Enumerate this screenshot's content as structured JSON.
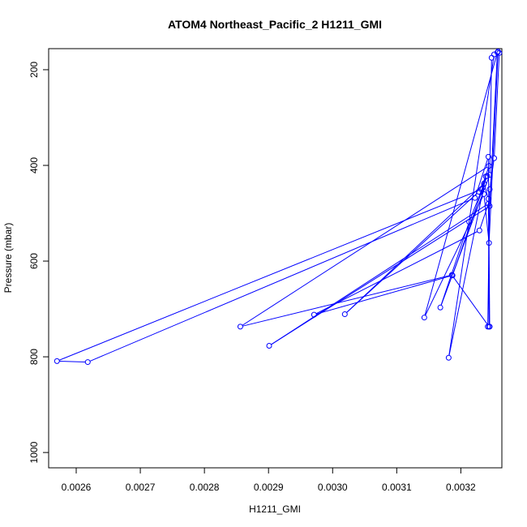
{
  "chart_data": {
    "type": "line",
    "title": "ATOM4 Northeast_Pacific_2 H1211_GMI",
    "xlabel": "H1211_GMI",
    "ylabel": "Pressure (mbar)",
    "xlim": [
      0.002557,
      0.003264
    ],
    "ylim": [
      1032,
      156
    ],
    "y_reversed": true,
    "xticks": [
      0.0026,
      0.0027,
      0.0028,
      0.0029,
      0.003,
      0.0031,
      0.0032
    ],
    "xtick_labels": [
      "0.0026",
      "0.0027",
      "0.0028",
      "0.0029",
      "0.0030",
      "0.0031",
      "0.0032"
    ],
    "yticks": [
      200,
      400,
      600,
      800,
      1000
    ],
    "ytick_labels": [
      "200",
      "400",
      "600",
      "800",
      "1000"
    ],
    "grid": false,
    "series_color": "#0000ff",
    "series": [
      {
        "x": [
          0.00326,
          0.003252,
          0.003245,
          0.003242,
          0.003245,
          0.003243,
          0.003222,
          0.002618,
          0.00257,
          0.003232,
          0.003244,
          0.002856,
          0.003186,
          0.003244,
          0.003243,
          0.003236,
          0.003019,
          0.003228,
          0.003239,
          0.003181,
          0.003252,
          0.003258,
          0.003244,
          0.003236,
          0.003143,
          0.003257,
          0.003245,
          0.002901,
          0.003243,
          0.003229,
          0.002971,
          0.003187,
          0.003241,
          0.003213,
          0.003168,
          0.003245,
          0.003248
        ],
        "y": [
          165,
          385,
          450,
          737,
          737,
          382,
          468,
          811,
          809,
          450,
          401,
          737,
          629,
          737,
          470,
          438,
          711,
          455,
          423,
          802,
          168,
          162,
          562,
          460,
          718,
          164,
          485,
          777,
          480,
          536,
          712,
          630,
          422,
          518,
          697,
          420,
          175
        ]
      }
    ]
  }
}
